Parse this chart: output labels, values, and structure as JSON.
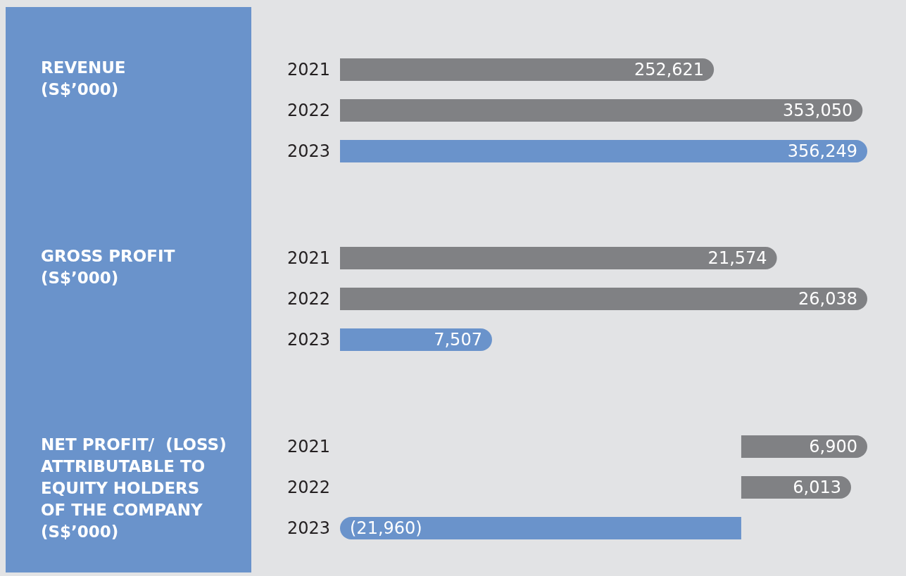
{
  "chart_data": [
    {
      "type": "bar",
      "orientation": "horizontal",
      "ylabel": "REVENUE\n(S$’000)",
      "categories": [
        "2021",
        "2022",
        "2023"
      ],
      "values": [
        252621,
        353050,
        356249
      ],
      "colors": [
        "#808184",
        "#808184",
        "#6a93cb"
      ],
      "value_labels": [
        "252,621",
        "353,050",
        "356,249"
      ]
    },
    {
      "type": "bar",
      "orientation": "horizontal",
      "ylabel": "GROSS PROFIT\n(S$’000)",
      "categories": [
        "2021",
        "2022",
        "2023"
      ],
      "values": [
        21574,
        26038,
        7507
      ],
      "colors": [
        "#808184",
        "#808184",
        "#6a93cb"
      ],
      "value_labels": [
        "21,574",
        "26,038",
        "7,507"
      ]
    },
    {
      "type": "bar",
      "orientation": "horizontal",
      "ylabel": "NET PROFIT/  (LOSS)\nATTRIBUTABLE TO\nEQUITY HOLDERS\nOF THE COMPANY\n(S$’000)",
      "categories": [
        "2021",
        "2022",
        "2023"
      ],
      "values": [
        6900,
        6013,
        -21960
      ],
      "colors": [
        "#808184",
        "#808184",
        "#6a93cb"
      ],
      "value_labels": [
        "6,900",
        "6,013",
        "(21,960)"
      ]
    }
  ]
}
